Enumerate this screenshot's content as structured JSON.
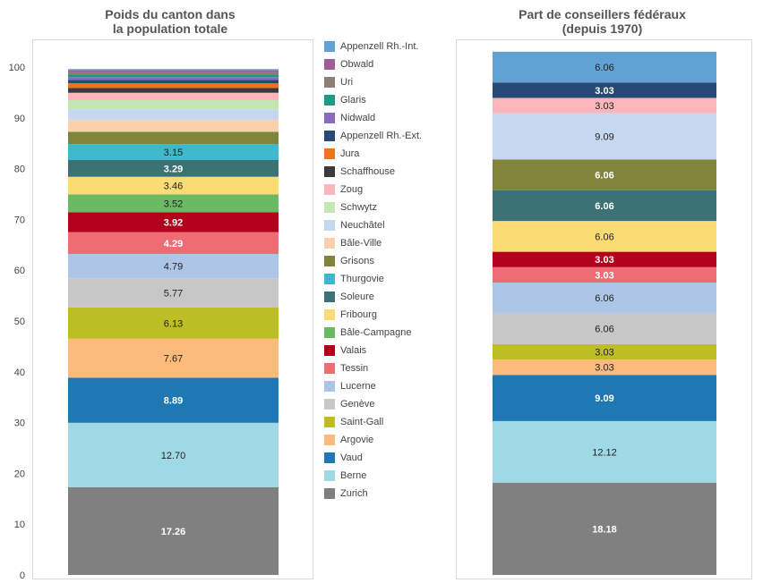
{
  "chart_data": [
    {
      "type": "bar",
      "stacked": true,
      "title": "Poids du canton dans\nla population totale",
      "yticks": [
        0,
        10,
        20,
        30,
        40,
        50,
        60,
        70,
        80,
        90,
        100
      ],
      "ylim": [
        0,
        100
      ],
      "segments": [
        {
          "name": "Zurich",
          "value": 17.26,
          "label": "17.26"
        },
        {
          "name": "Berne",
          "value": 12.7,
          "label": "12.70"
        },
        {
          "name": "Vaud",
          "value": 8.89,
          "label": "8.89"
        },
        {
          "name": "Argovie",
          "value": 7.67,
          "label": "7.67"
        },
        {
          "name": "Saint-Gall",
          "value": 6.13,
          "label": "6.13"
        },
        {
          "name": "Genève",
          "value": 5.77,
          "label": "5.77"
        },
        {
          "name": "Lucerne",
          "value": 4.79,
          "label": "4.79"
        },
        {
          "name": "Tessin",
          "value": 4.29,
          "label": "4.29"
        },
        {
          "name": "Valais",
          "value": 3.92,
          "label": "3.92"
        },
        {
          "name": "Bâle-Campagne",
          "value": 3.52,
          "label": "3.52"
        },
        {
          "name": "Fribourg",
          "value": 3.46,
          "label": "3.46"
        },
        {
          "name": "Soleure",
          "value": 3.29,
          "label": "3.29"
        },
        {
          "name": "Thurgovie",
          "value": 3.15,
          "label": "3.15"
        },
        {
          "name": "Grisons",
          "value": 2.4,
          "label": ""
        },
        {
          "name": "Bâle-Ville",
          "value": 2.35,
          "label": ""
        },
        {
          "name": "Neuchâtel",
          "value": 2.1,
          "label": ""
        },
        {
          "name": "Schwytz",
          "value": 1.8,
          "label": ""
        },
        {
          "name": "Zoug",
          "value": 1.45,
          "label": ""
        },
        {
          "name": "Schaffhouse",
          "value": 0.96,
          "label": ""
        },
        {
          "name": "Jura",
          "value": 0.9,
          "label": ""
        },
        {
          "name": "Appenzell Rh.-Ext.",
          "value": 0.66,
          "label": ""
        },
        {
          "name": "Nidwald",
          "value": 0.55,
          "label": ""
        },
        {
          "name": "Glaris",
          "value": 0.5,
          "label": ""
        },
        {
          "name": "Uri",
          "value": 0.45,
          "label": ""
        },
        {
          "name": "Obwald",
          "value": 0.45,
          "label": ""
        },
        {
          "name": "Appenzell Rh.-Int.",
          "value": 0.2,
          "label": ""
        }
      ]
    },
    {
      "type": "bar",
      "stacked": true,
      "title": "Part de conseillers fédéraux\n(depuis 1970)",
      "ylim": [
        0,
        100
      ],
      "segments": [
        {
          "name": "Zurich",
          "value": 18.18,
          "label": "18.18"
        },
        {
          "name": "Berne",
          "value": 12.12,
          "label": "12.12"
        },
        {
          "name": "Vaud",
          "value": 9.09,
          "label": "9.09"
        },
        {
          "name": "Argovie",
          "value": 3.03,
          "label": "3.03"
        },
        {
          "name": "Saint-Gall",
          "value": 3.03,
          "label": "3.03"
        },
        {
          "name": "Genève",
          "value": 6.06,
          "label": "6.06"
        },
        {
          "name": "Lucerne",
          "value": 6.06,
          "label": "6.06"
        },
        {
          "name": "Tessin",
          "value": 3.03,
          "label": "3.03"
        },
        {
          "name": "Valais",
          "value": 3.03,
          "label": "3.03"
        },
        {
          "name": "Fribourg",
          "value": 6.06,
          "label": "6.06"
        },
        {
          "name": "Soleure",
          "value": 6.06,
          "label": "6.06"
        },
        {
          "name": "Grisons",
          "value": 6.06,
          "label": "6.06"
        },
        {
          "name": "Neuchâtel",
          "value": 9.09,
          "label": "9.09"
        },
        {
          "name": "Zoug",
          "value": 3.03,
          "label": "3.03"
        },
        {
          "name": "Appenzell Rh.-Ext.",
          "value": 3.03,
          "label": "3.03"
        },
        {
          "name": "Appenzell Rh.-Int.",
          "value": 6.06,
          "label": "6.06"
        }
      ]
    }
  ],
  "legend": [
    {
      "name": "Appenzell Rh.-Int.",
      "color": "#5fa2d3"
    },
    {
      "name": "Obwald",
      "color": "#a05c96"
    },
    {
      "name": "Uri",
      "color": "#8c7f74"
    },
    {
      "name": "Glaris",
      "color": "#1d9a84"
    },
    {
      "name": "Nidwald",
      "color": "#8a6bbf"
    },
    {
      "name": "Appenzell Rh.-Ext.",
      "color": "#264a75"
    },
    {
      "name": "Jura",
      "color": "#f0721b"
    },
    {
      "name": "Schaffhouse",
      "color": "#3a3a3a"
    },
    {
      "name": "Zoug",
      "color": "#fbb6bb"
    },
    {
      "name": "Schwytz",
      "color": "#c4e6b2"
    },
    {
      "name": "Neuchâtel",
      "color": "#c6d8f0"
    },
    {
      "name": "Bâle-Ville",
      "color": "#fbd1ad"
    },
    {
      "name": "Grisons",
      "color": "#80843b"
    },
    {
      "name": "Thurgovie",
      "color": "#3fb7cc"
    },
    {
      "name": "Soleure",
      "color": "#3a7275"
    },
    {
      "name": "Fribourg",
      "color": "#fbdb74"
    },
    {
      "name": "Bâle-Campagne",
      "color": "#6ab963"
    },
    {
      "name": "Valais",
      "color": "#b3001c"
    },
    {
      "name": "Tessin",
      "color": "#ee6d74"
    },
    {
      "name": "Lucerne",
      "color": "#adc6e8"
    },
    {
      "name": "Genève",
      "color": "#c7c7c7"
    },
    {
      "name": "Saint-Gall",
      "color": "#bdbe23"
    },
    {
      "name": "Argovie",
      "color": "#fdbb7b"
    },
    {
      "name": "Vaud",
      "color": "#1f77b4"
    },
    {
      "name": "Berne",
      "color": "#9ed9e5"
    },
    {
      "name": "Zurich",
      "color": "#808080"
    }
  ]
}
